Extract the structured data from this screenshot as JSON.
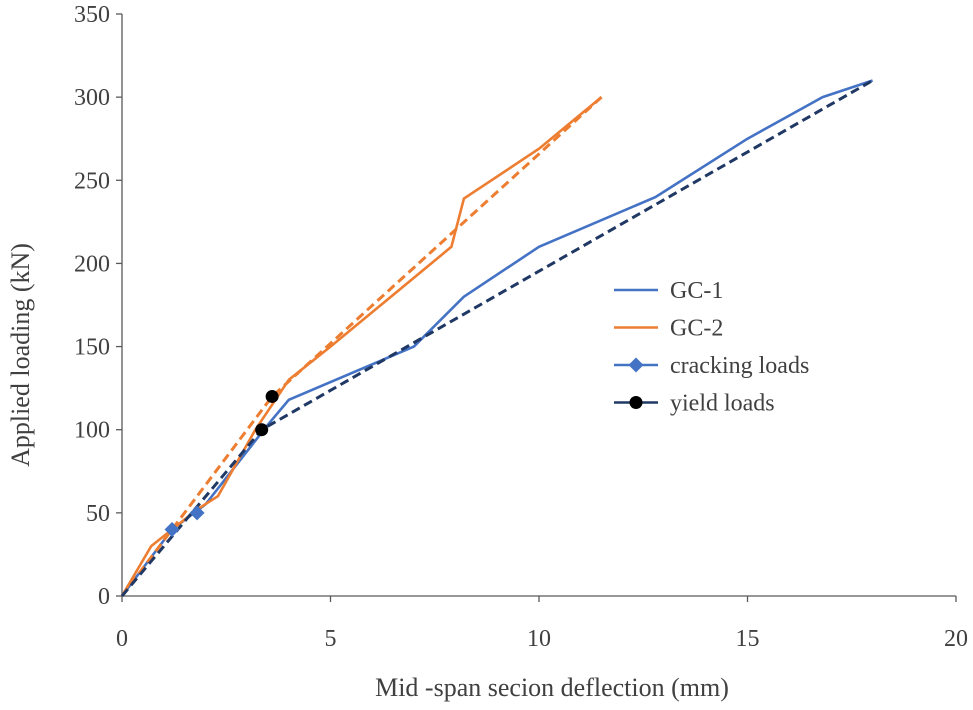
{
  "chart_data": {
    "type": "line",
    "xlabel": "Mid -span secion deflection (mm)",
    "ylabel": "Applied loading (kN)",
    "xlim": [
      0,
      20
    ],
    "ylim": [
      0,
      350
    ],
    "xticks": [
      0,
      5,
      10,
      15,
      20
    ],
    "yticks": [
      0,
      50,
      100,
      150,
      200,
      250,
      300,
      350
    ],
    "xtick_labels": [
      "0",
      "5",
      "10",
      "15",
      "20"
    ],
    "ytick_labels": [
      "0",
      "50",
      "100",
      "150",
      "200",
      "250",
      "300",
      "350"
    ],
    "grid": false,
    "legend_position": "right",
    "series": [
      {
        "name": "GC-1",
        "style": "solid",
        "color": "#4472C4",
        "x": [
          0,
          1.2,
          2.0,
          3.5,
          4.0,
          7.0,
          8.2,
          10.0,
          12.8,
          15.0,
          16.8,
          18.0
        ],
        "y": [
          0,
          40,
          55,
          103,
          118,
          150,
          180,
          210,
          240,
          275,
          300,
          310
        ]
      },
      {
        "name": "GC-2",
        "style": "solid",
        "color": "#ED7D31",
        "x": [
          0,
          0.7,
          1.8,
          2.3,
          3.2,
          4.0,
          5.0,
          7.9,
          8.2,
          10.0,
          11.5
        ],
        "y": [
          0,
          30,
          52,
          60,
          100,
          130,
          150,
          210,
          239,
          269,
          300
        ]
      },
      {
        "name": "",
        "style": "dashed",
        "color": "#ED7D31",
        "x": [
          0,
          3.6,
          11.5
        ],
        "y": [
          0,
          120,
          300
        ]
      },
      {
        "name": "",
        "style": "dashed",
        "color": "#203864",
        "x": [
          0,
          3.35,
          18.0
        ],
        "y": [
          0,
          100,
          310
        ]
      }
    ],
    "markers": [
      {
        "name": "cracking loads",
        "shape": "diamond",
        "color": "#4472C4",
        "x": [
          1.2,
          1.8
        ],
        "y": [
          40,
          50
        ]
      },
      {
        "name": "yield loads",
        "shape": "circle",
        "color": "#000000",
        "x": [
          3.35,
          3.6
        ],
        "y": [
          100,
          120
        ]
      }
    ],
    "legend": [
      {
        "label": "GC-1",
        "kind": "line",
        "color": "#4472C4"
      },
      {
        "label": "GC-2",
        "kind": "line",
        "color": "#ED7D31"
      },
      {
        "label": "cracking loads",
        "kind": "diamond",
        "color": "#4472C4"
      },
      {
        "label": "yield loads",
        "kind": "circle",
        "color": "#000000",
        "line_color": "#203864"
      }
    ]
  }
}
